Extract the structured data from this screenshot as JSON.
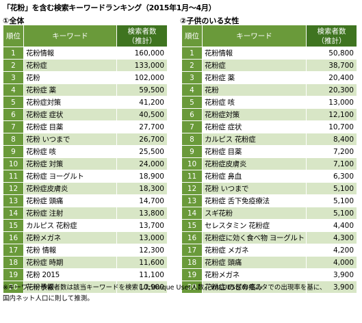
{
  "title": "「花粉」を含む検索キーワードランキング（2015年1月～4月）",
  "left": {
    "subtitle": "①全体",
    "headers": {
      "rank": "順位",
      "keyword": "キーワード",
      "count_line1": "検索者数",
      "count_line2": "（推計）"
    },
    "rows": [
      {
        "rank": "1",
        "keyword": "花粉情報",
        "count": "160,000"
      },
      {
        "rank": "2",
        "keyword": "花粉症",
        "count": "133,000"
      },
      {
        "rank": "3",
        "keyword": "花粉",
        "count": "102,000"
      },
      {
        "rank": "4",
        "keyword": "花粉症 薬",
        "count": "59,500"
      },
      {
        "rank": "5",
        "keyword": "花粉症対策",
        "count": "41,200"
      },
      {
        "rank": "6",
        "keyword": "花粉症 症状",
        "count": "40,500"
      },
      {
        "rank": "7",
        "keyword": "花粉症 目薬",
        "count": "27,700"
      },
      {
        "rank": "8",
        "keyword": "花粉 いつまで",
        "count": "26,700"
      },
      {
        "rank": "9",
        "keyword": "花粉症 咳",
        "count": "25,500"
      },
      {
        "rank": "10",
        "keyword": "花粉症 対策",
        "count": "24,000"
      },
      {
        "rank": "11",
        "keyword": "花粉症 ヨーグルト",
        "count": "18,900"
      },
      {
        "rank": "12",
        "keyword": "花粉症皮膚炎",
        "count": "18,300"
      },
      {
        "rank": "13",
        "keyword": "花粉症 頭痛",
        "count": "14,700"
      },
      {
        "rank": "14",
        "keyword": "花粉症 注射",
        "count": "13,800"
      },
      {
        "rank": "15",
        "keyword": "カルピス 花粉症",
        "count": "13,700"
      },
      {
        "rank": "16",
        "keyword": "花粉メガネ",
        "count": "13,000"
      },
      {
        "rank": "17",
        "keyword": "花粉 情報",
        "count": "12,300"
      },
      {
        "rank": "18",
        "keyword": "花粉症 時期",
        "count": "11,600"
      },
      {
        "rank": "19",
        "keyword": "花粉 2015",
        "count": "11,100"
      },
      {
        "rank": "20",
        "keyword": "花粉予報",
        "count": "10,900"
      }
    ]
  },
  "right": {
    "subtitle": "②子供のいる女性",
    "headers": {
      "rank": "順位",
      "keyword": "キーワード",
      "count_line1": "検索者数",
      "count_line2": "（推計）"
    },
    "rows": [
      {
        "rank": "1",
        "keyword": "花粉情報",
        "count": "50,800"
      },
      {
        "rank": "2",
        "keyword": "花粉症",
        "count": "38,700"
      },
      {
        "rank": "3",
        "keyword": "花粉症 薬",
        "count": "20,400"
      },
      {
        "rank": "4",
        "keyword": "花粉",
        "count": "20,300"
      },
      {
        "rank": "5",
        "keyword": "花粉症 咳",
        "count": "13,000"
      },
      {
        "rank": "6",
        "keyword": "花粉症対策",
        "count": "12,100"
      },
      {
        "rank": "7",
        "keyword": "花粉症 症状",
        "count": "10,700"
      },
      {
        "rank": "8",
        "keyword": "カルピス 花粉症",
        "count": "8,400"
      },
      {
        "rank": "9",
        "keyword": "花粉症 目薬",
        "count": "7,200"
      },
      {
        "rank": "10",
        "keyword": "花粉症皮膚炎",
        "count": "7,100"
      },
      {
        "rank": "11",
        "keyword": "花粉症 鼻血",
        "count": "6,300"
      },
      {
        "rank": "12",
        "keyword": "花粉 いつまで",
        "count": "5,100"
      },
      {
        "rank": "13",
        "keyword": "花粉症 舌下免疫療法",
        "count": "5,100"
      },
      {
        "rank": "14",
        "keyword": "スギ花粉",
        "count": "5,100"
      },
      {
        "rank": "15",
        "keyword": "セレスタミン 花粉症",
        "count": "4,400"
      },
      {
        "rank": "16",
        "keyword": "花粉症に効く食べ物 ヨーグルト",
        "count": "4,300"
      },
      {
        "rank": "17",
        "keyword": "花粉症 メガネ",
        "count": "4,200"
      },
      {
        "rank": "18",
        "keyword": "花粉症 頭痛",
        "count": "4,000"
      },
      {
        "rank": "19",
        "keyword": "花粉メガネ",
        "count": "3,900"
      },
      {
        "rank": "20",
        "keyword": "花粉症 のどの痛み",
        "count": "3,900"
      }
    ]
  },
  "footnote": {
    "line1": "※キーワード検索者数は該当キーワードを検索したUnique User人数。VALUES保有モニタでの出現率を基に、",
    "line2": "国内ネット人口に則して推測。"
  }
}
